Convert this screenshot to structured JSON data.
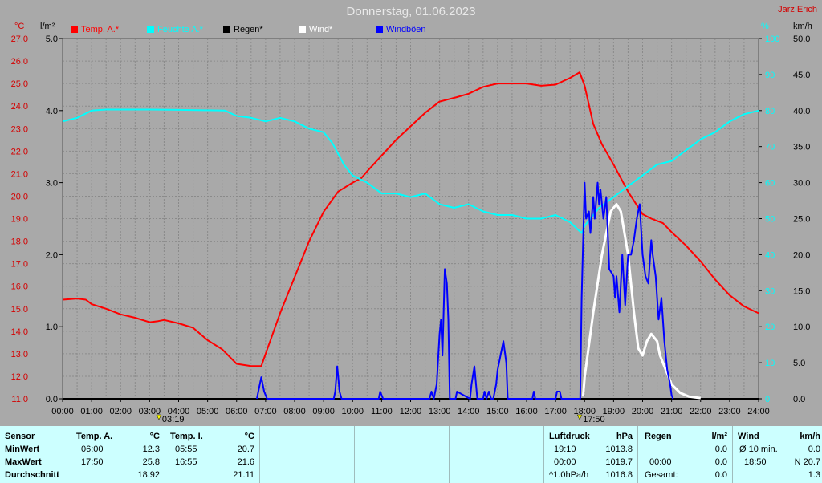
{
  "header": {
    "title": "Donnerstag, 01.06.2023",
    "author": "Jarz Erich"
  },
  "units": {
    "temp": "°C",
    "rain": "l/m²",
    "humidity": "%",
    "wind": "km/h"
  },
  "colors": {
    "temp": "#ff0000",
    "humidity": "#00ffff",
    "rain": "#000000",
    "wind": "#ffffff",
    "gusts": "#0000ff",
    "plot_bg": "#a9a9a9"
  },
  "chart_data": {
    "type": "line",
    "title": "Donnerstag, 01.06.2023",
    "x_unit": "hours",
    "x_ticks": [
      "00:00",
      "01:00",
      "02:00",
      "03:00",
      "04:00",
      "05:00",
      "06:00",
      "07:00",
      "08:00",
      "09:00",
      "10:00",
      "11:00",
      "12:00",
      "13:00",
      "14:00",
      "15:00",
      "16:00",
      "17:00",
      "18:00",
      "19:00",
      "20:00",
      "21:00",
      "22:00",
      "23:00",
      "24:00"
    ],
    "axes": {
      "temp": {
        "label": "°C",
        "range": [
          11.0,
          27.0
        ],
        "ticks": [
          "11.0",
          "12.0",
          "13.0",
          "14.0",
          "15.0",
          "16.0",
          "17.0",
          "18.0",
          "19.0",
          "20.0",
          "21.0",
          "22.0",
          "23.0",
          "24.0",
          "25.0",
          "26.0",
          "27.0"
        ]
      },
      "rain": {
        "label": "l/m²",
        "range": [
          0.0,
          5.0
        ],
        "ticks": [
          "0.0",
          "1.0",
          "2.0",
          "3.0",
          "4.0",
          "5.0"
        ]
      },
      "humidity": {
        "label": "%",
        "range": [
          0,
          100
        ],
        "ticks": [
          "0",
          "10",
          "20",
          "30",
          "40",
          "50",
          "60",
          "70",
          "80",
          "90",
          "100"
        ]
      },
      "wind": {
        "label": "km/h",
        "range": [
          0.0,
          50.0
        ],
        "ticks": [
          "0.0",
          "5.0",
          "10.0",
          "15.0",
          "20.0",
          "25.0",
          "30.0",
          "35.0",
          "40.0",
          "45.0",
          "50.0"
        ]
      }
    },
    "grid": true,
    "legend_position": "top",
    "markers": [
      {
        "x": 3.32,
        "label": "03:19"
      },
      {
        "x": 17.83,
        "label": "17:50"
      }
    ],
    "series": [
      {
        "name": "Temp. A.*",
        "color": "#ff0000",
        "axis": "temp",
        "x": [
          0,
          0.5,
          0.8,
          1,
          1.5,
          2,
          2.5,
          3,
          3.3,
          3.5,
          4,
          4.5,
          5,
          5.5,
          6,
          6.5,
          6.85,
          7,
          7.5,
          8,
          8.5,
          9,
          9.5,
          10,
          10.3,
          10.5,
          11,
          11.5,
          12,
          12.5,
          13,
          13.3,
          13.6,
          14,
          14.5,
          15,
          15.5,
          16,
          16.5,
          17,
          17.5,
          17.83,
          18,
          18.3,
          18.6,
          19,
          19.5,
          20,
          20.3,
          20.7,
          21,
          21.5,
          22,
          22.5,
          23,
          23.5,
          24
        ],
        "y": [
          15.4,
          15.45,
          15.4,
          15.2,
          15.0,
          14.75,
          14.6,
          14.4,
          14.45,
          14.5,
          14.35,
          14.15,
          13.6,
          13.2,
          12.55,
          12.45,
          12.45,
          13.0,
          14.8,
          16.4,
          18.0,
          19.3,
          20.2,
          20.6,
          20.8,
          21.1,
          21.8,
          22.5,
          23.1,
          23.7,
          24.2,
          24.3,
          24.4,
          24.55,
          24.85,
          25.0,
          25.0,
          25.0,
          24.9,
          24.95,
          25.25,
          25.5,
          24.9,
          23.2,
          22.3,
          21.4,
          20.2,
          19.2,
          19.0,
          18.8,
          18.4,
          17.8,
          17.1,
          16.3,
          15.6,
          15.1,
          14.8
        ]
      },
      {
        "name": "Feuchte A.*",
        "color": "#00ffff",
        "axis": "humidity",
        "x": [
          0,
          0.5,
          1,
          1.5,
          2,
          3,
          4,
          5,
          5.6,
          6,
          6.5,
          7,
          7.5,
          8,
          8.5,
          9,
          9.3,
          9.7,
          10,
          10.5,
          11,
          11.5,
          12,
          12.5,
          13,
          13.5,
          14,
          14.5,
          15,
          15.5,
          16,
          16.5,
          17,
          17.5,
          17.9,
          18,
          18.5,
          19,
          19.5,
          20,
          20.5,
          21,
          21.5,
          22,
          22.5,
          23,
          23.5,
          24
        ],
        "y": [
          77,
          78,
          80,
          80.3,
          80.3,
          80.3,
          80.2,
          80.1,
          80,
          78.5,
          78,
          77,
          78,
          77,
          75,
          74,
          71,
          65,
          62,
          60,
          57,
          57,
          56,
          57,
          54,
          53,
          54,
          52,
          51,
          51,
          50,
          50,
          51,
          49,
          46,
          48,
          53,
          56,
          59,
          62,
          65,
          66,
          69,
          72,
          74,
          77,
          79,
          80
        ]
      },
      {
        "name": "Regen*",
        "color": "#000000",
        "axis": "rain",
        "x": [
          0,
          24
        ],
        "y": [
          0.0,
          0.0
        ]
      },
      {
        "name": "Wind*",
        "color": "#ffffff",
        "axis": "wind",
        "x": [
          17.95,
          18,
          18.3,
          18.6,
          18.9,
          19.1,
          19.25,
          19.5,
          19.7,
          19.85,
          20,
          20.15,
          20.3,
          20.5,
          20.6,
          20.8,
          21.0,
          21.3,
          21.6,
          22.0
        ],
        "y": [
          0.3,
          3,
          12,
          20,
          26,
          27,
          26,
          20,
          12,
          7,
          6,
          8,
          9,
          8,
          6,
          4,
          2,
          0.8,
          0.3,
          0.1
        ]
      },
      {
        "name": "Windböen",
        "color": "#0000ff",
        "axis": "wind",
        "x": [
          6.7,
          6.75,
          6.85,
          6.95,
          7.05,
          9.35,
          9.4,
          9.47,
          9.55,
          9.62,
          10.9,
          10.95,
          11.05,
          12.65,
          12.72,
          12.8,
          12.9,
          13.0,
          13.05,
          13.1,
          13.18,
          13.25,
          13.3,
          13.35,
          13.55,
          13.6,
          14.05,
          14.1,
          14.2,
          14.3,
          14.5,
          14.55,
          14.62,
          14.7,
          14.78,
          14.85,
          14.95,
          15.0,
          15.2,
          15.3,
          15.35,
          16.2,
          16.25,
          16.3,
          16.4,
          17.0,
          17.05,
          17.15,
          17.2,
          17.85,
          17.9,
          18.0,
          18.05,
          18.15,
          18.2,
          18.3,
          18.35,
          18.45,
          18.5,
          18.55,
          18.65,
          18.75,
          18.85,
          19.0,
          19.05,
          19.1,
          19.2,
          19.3,
          19.4,
          19.5,
          19.6,
          19.7,
          19.8,
          19.9,
          20.0,
          20.1,
          20.2,
          20.3,
          20.35,
          20.45,
          20.55,
          20.65,
          20.75,
          20.85,
          20.95,
          21.0,
          21.05
        ],
        "y": [
          0,
          1,
          3,
          1,
          0,
          0,
          1,
          4.5,
          1,
          0,
          0,
          1,
          0,
          0,
          1,
          0,
          2,
          9,
          11,
          6,
          18,
          16,
          11,
          0,
          0,
          1,
          0,
          2,
          4.5,
          0,
          0,
          1,
          0,
          1,
          0,
          0,
          2,
          4,
          8,
          5,
          0,
          0,
          1,
          0,
          0,
          0,
          1,
          1,
          0,
          0,
          14,
          30,
          25,
          26,
          23,
          28,
          25,
          30,
          27,
          29,
          25,
          28,
          18,
          17,
          14,
          17,
          12,
          20,
          13,
          20,
          20,
          22,
          25,
          27,
          20,
          17,
          16,
          22,
          20,
          17,
          11,
          14,
          8,
          4,
          2,
          0.5,
          0
        ]
      }
    ]
  },
  "stats": {
    "sensor": {
      "header": "Sensor",
      "rows": [
        "MinWert",
        "MaxWert",
        "Durchschnitt"
      ]
    },
    "temp_a": {
      "header": "Temp. A.",
      "unit": "°C",
      "min_time": "06:00",
      "min_val": "12.3",
      "max_time": "17:50",
      "max_val": "25.8",
      "avg": "18.92"
    },
    "temp_i": {
      "header": "Temp. I.",
      "unit": "°C",
      "min_time": "05:55",
      "min_val": "20.7",
      "max_time": "16:55",
      "max_val": "21.6",
      "avg": "21.11"
    },
    "pressure": {
      "header": "Luftdruck",
      "unit": "hPa",
      "min_time": "19:10",
      "min_val": "1013.8",
      "max_time": "00:00",
      "max_val": "1019.7",
      "trend_label": "^1.0hPa/h",
      "trend_val": "1016.8"
    },
    "rain": {
      "header": "Regen",
      "unit": "l/m²",
      "min_val": "0.0",
      "max_time": "00:00",
      "max_val": "0.0",
      "total_label": "Gesamt:",
      "total_val": "0.0"
    },
    "wind": {
      "header": "Wind",
      "unit": "km/h",
      "avg_label": "Ø 10 min.",
      "avg_val": "0.0",
      "max_time": "18:50",
      "max_val": "N 20.7",
      "last_val": "1.3"
    }
  }
}
